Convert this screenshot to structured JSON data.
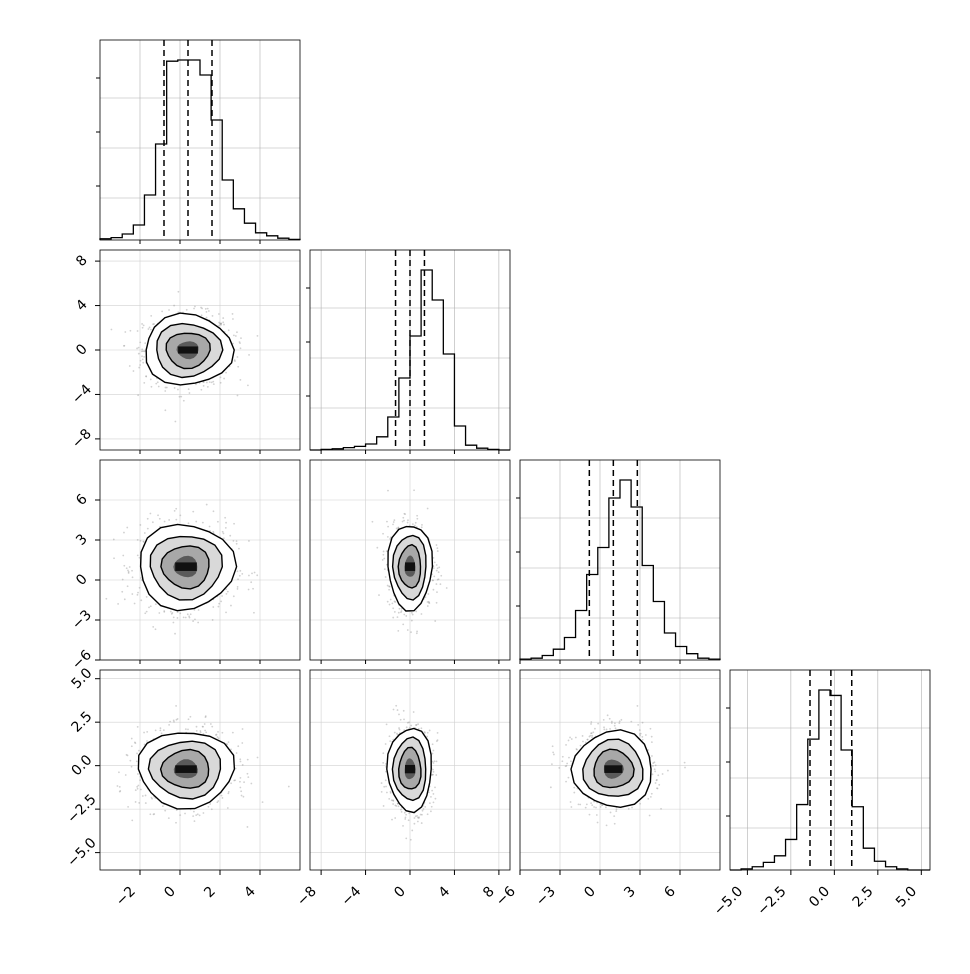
{
  "chart_data": {
    "type": "corner",
    "grid": true,
    "parameters": [
      {
        "hist_range": [
          -4,
          6
        ],
        "ticks": [
          -2,
          0,
          2,
          4
        ],
        "tick_labels": [
          "−2",
          "0",
          "2",
          "4"
        ],
        "quantiles": [
          -0.8,
          0.4,
          1.6
        ],
        "hist_counts": [
          2,
          4,
          10,
          25,
          75,
          160,
          298,
          300,
          300,
          275,
          200,
          100,
          52,
          28,
          12,
          7,
          3,
          1
        ]
      },
      {
        "hist_range": [
          -9,
          9
        ],
        "ticks": [
          -8,
          -4,
          0,
          4,
          8
        ],
        "tick_labels": [
          "−8",
          "−4",
          "0",
          "4",
          "8"
        ],
        "quantiles": [
          -1.3,
          0.0,
          1.3
        ],
        "hist_counts": [
          0,
          1,
          2,
          4,
          6,
          10,
          22,
          55,
          120,
          190,
          300,
          250,
          160,
          40,
          8,
          3,
          1,
          0
        ]
      },
      {
        "hist_range": [
          -6,
          9
        ],
        "ticks": [
          -6,
          -3,
          0,
          3,
          6
        ],
        "tick_labels": [
          "−6",
          "−3",
          "0",
          "3",
          "6"
        ],
        "quantiles": [
          -0.8,
          1.0,
          2.8
        ],
        "hist_counts": [
          1,
          2,
          5,
          12,
          25,
          55,
          95,
          125,
          180,
          200,
          170,
          105,
          65,
          30,
          15,
          7,
          2,
          1
        ]
      },
      {
        "hist_range": [
          -6,
          5.5
        ],
        "ticks": [
          -5,
          -2.5,
          0,
          2.5,
          5
        ],
        "tick_labels": [
          "−5.0",
          "−2.5",
          "0.0",
          "2.5",
          "5.0"
        ],
        "quantiles": [
          -1.4,
          -0.2,
          1.0
        ],
        "hist_counts": [
          0,
          1,
          3,
          7,
          13,
          28,
          60,
          120,
          165,
          160,
          110,
          58,
          20,
          8,
          3,
          1,
          0,
          0
        ]
      }
    ],
    "pairs": [
      {
        "row": 1,
        "col": 0,
        "center": [
          0.4,
          0.0
        ],
        "sd": [
          1.1,
          1.6
        ]
      },
      {
        "row": 2,
        "col": 0,
        "center": [
          0.3,
          1.0
        ],
        "sd": [
          1.2,
          1.6
        ]
      },
      {
        "row": 2,
        "col": 1,
        "center": [
          0.0,
          1.0
        ],
        "sd": [
          1.0,
          1.6
        ]
      },
      {
        "row": 3,
        "col": 0,
        "center": [
          0.3,
          -0.2
        ],
        "sd": [
          1.2,
          1.1
        ]
      },
      {
        "row": 3,
        "col": 1,
        "center": [
          0.0,
          -0.2
        ],
        "sd": [
          1.0,
          1.2
        ]
      },
      {
        "row": 3,
        "col": 2,
        "center": [
          1.0,
          -0.2
        ],
        "sd": [
          1.5,
          1.1
        ]
      }
    ]
  }
}
